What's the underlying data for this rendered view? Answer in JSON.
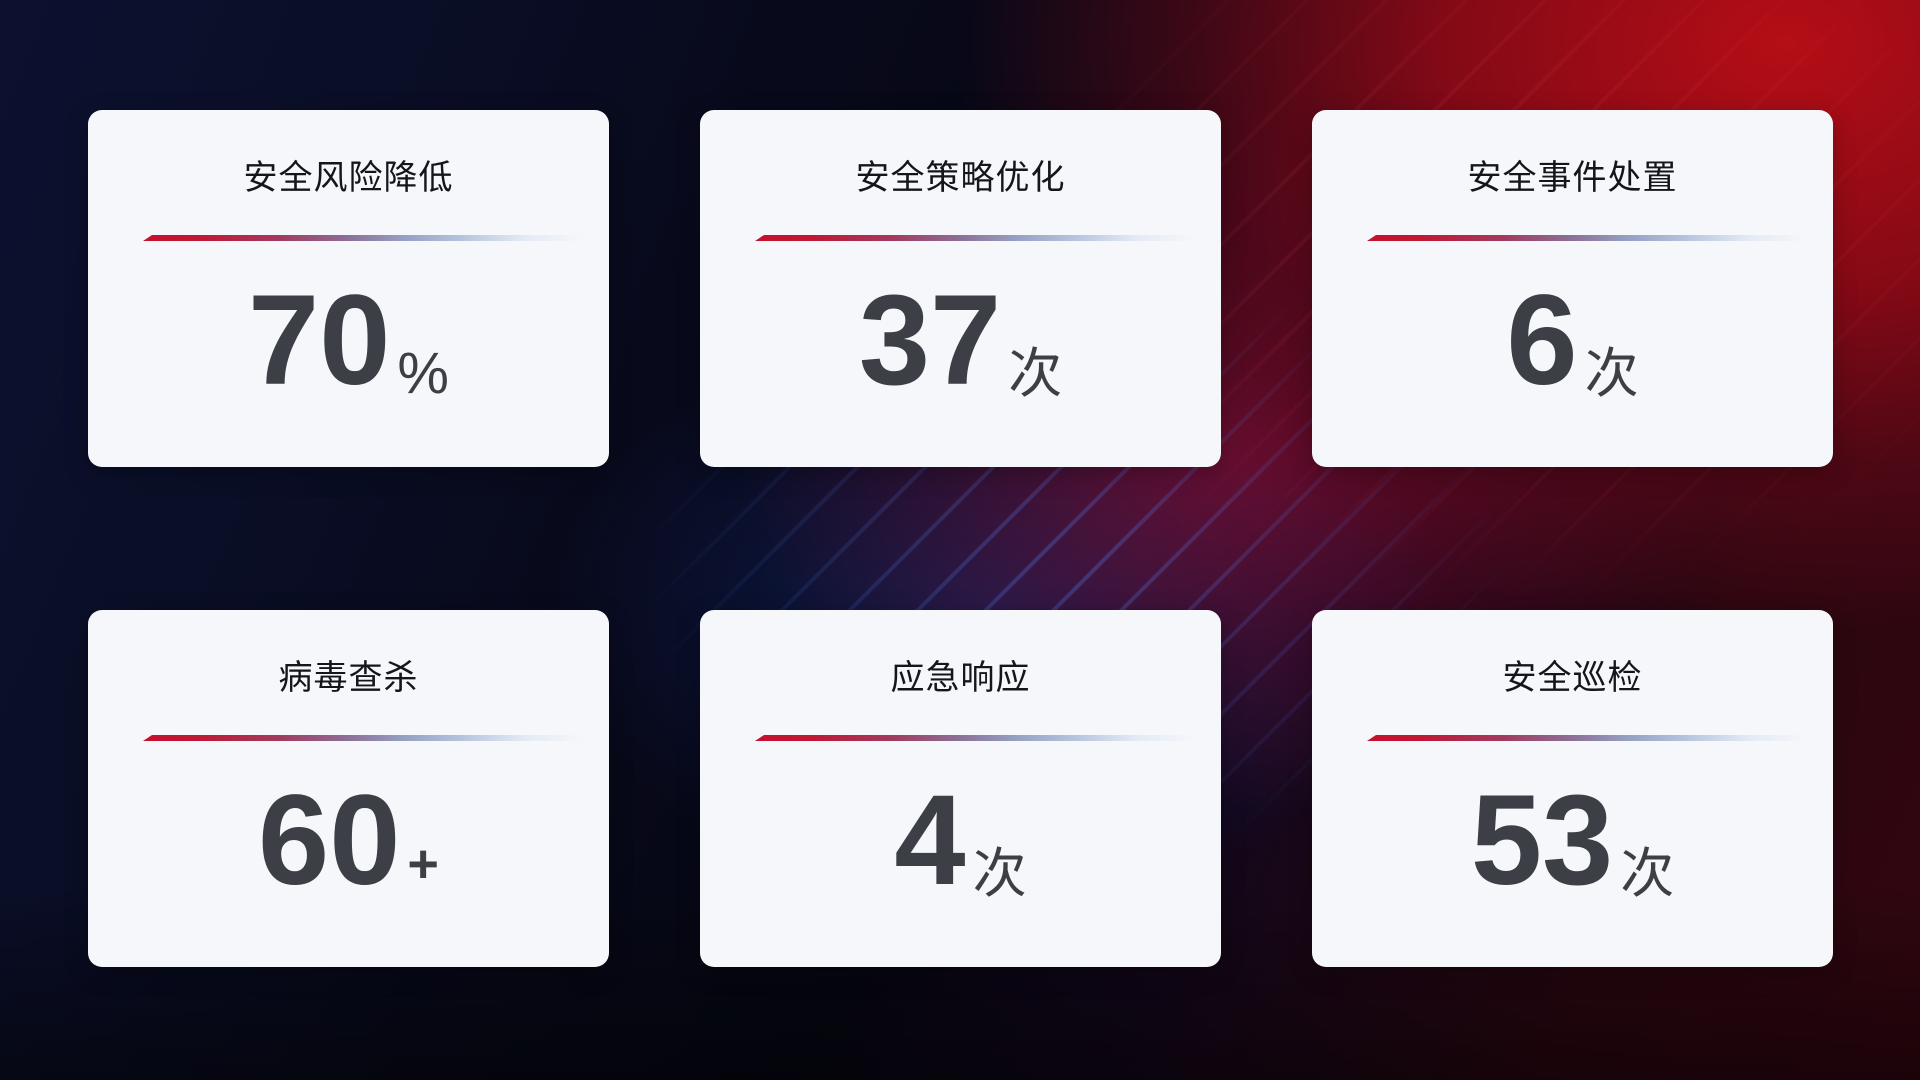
{
  "theme": {
    "accent_red": "#c6102f",
    "divider_end": "#b4c3dd",
    "card_bg": "#f5f7fa",
    "title_color": "#14161c",
    "value_color": "#3c3f46",
    "bg_navy": "#0c1130",
    "bg_red": "#b00f16"
  },
  "cards": [
    {
      "title": "安全风险降低",
      "value": "70",
      "unit": "%"
    },
    {
      "title": "安全策略优化",
      "value": "37",
      "unit": "次"
    },
    {
      "title": "安全事件处置",
      "value": "6",
      "unit": "次"
    },
    {
      "title": "病毒查杀",
      "value": "60",
      "unit": "+"
    },
    {
      "title": "应急响应",
      "value": "4",
      "unit": "次"
    },
    {
      "title": "安全巡检",
      "value": "53",
      "unit": "次"
    }
  ]
}
